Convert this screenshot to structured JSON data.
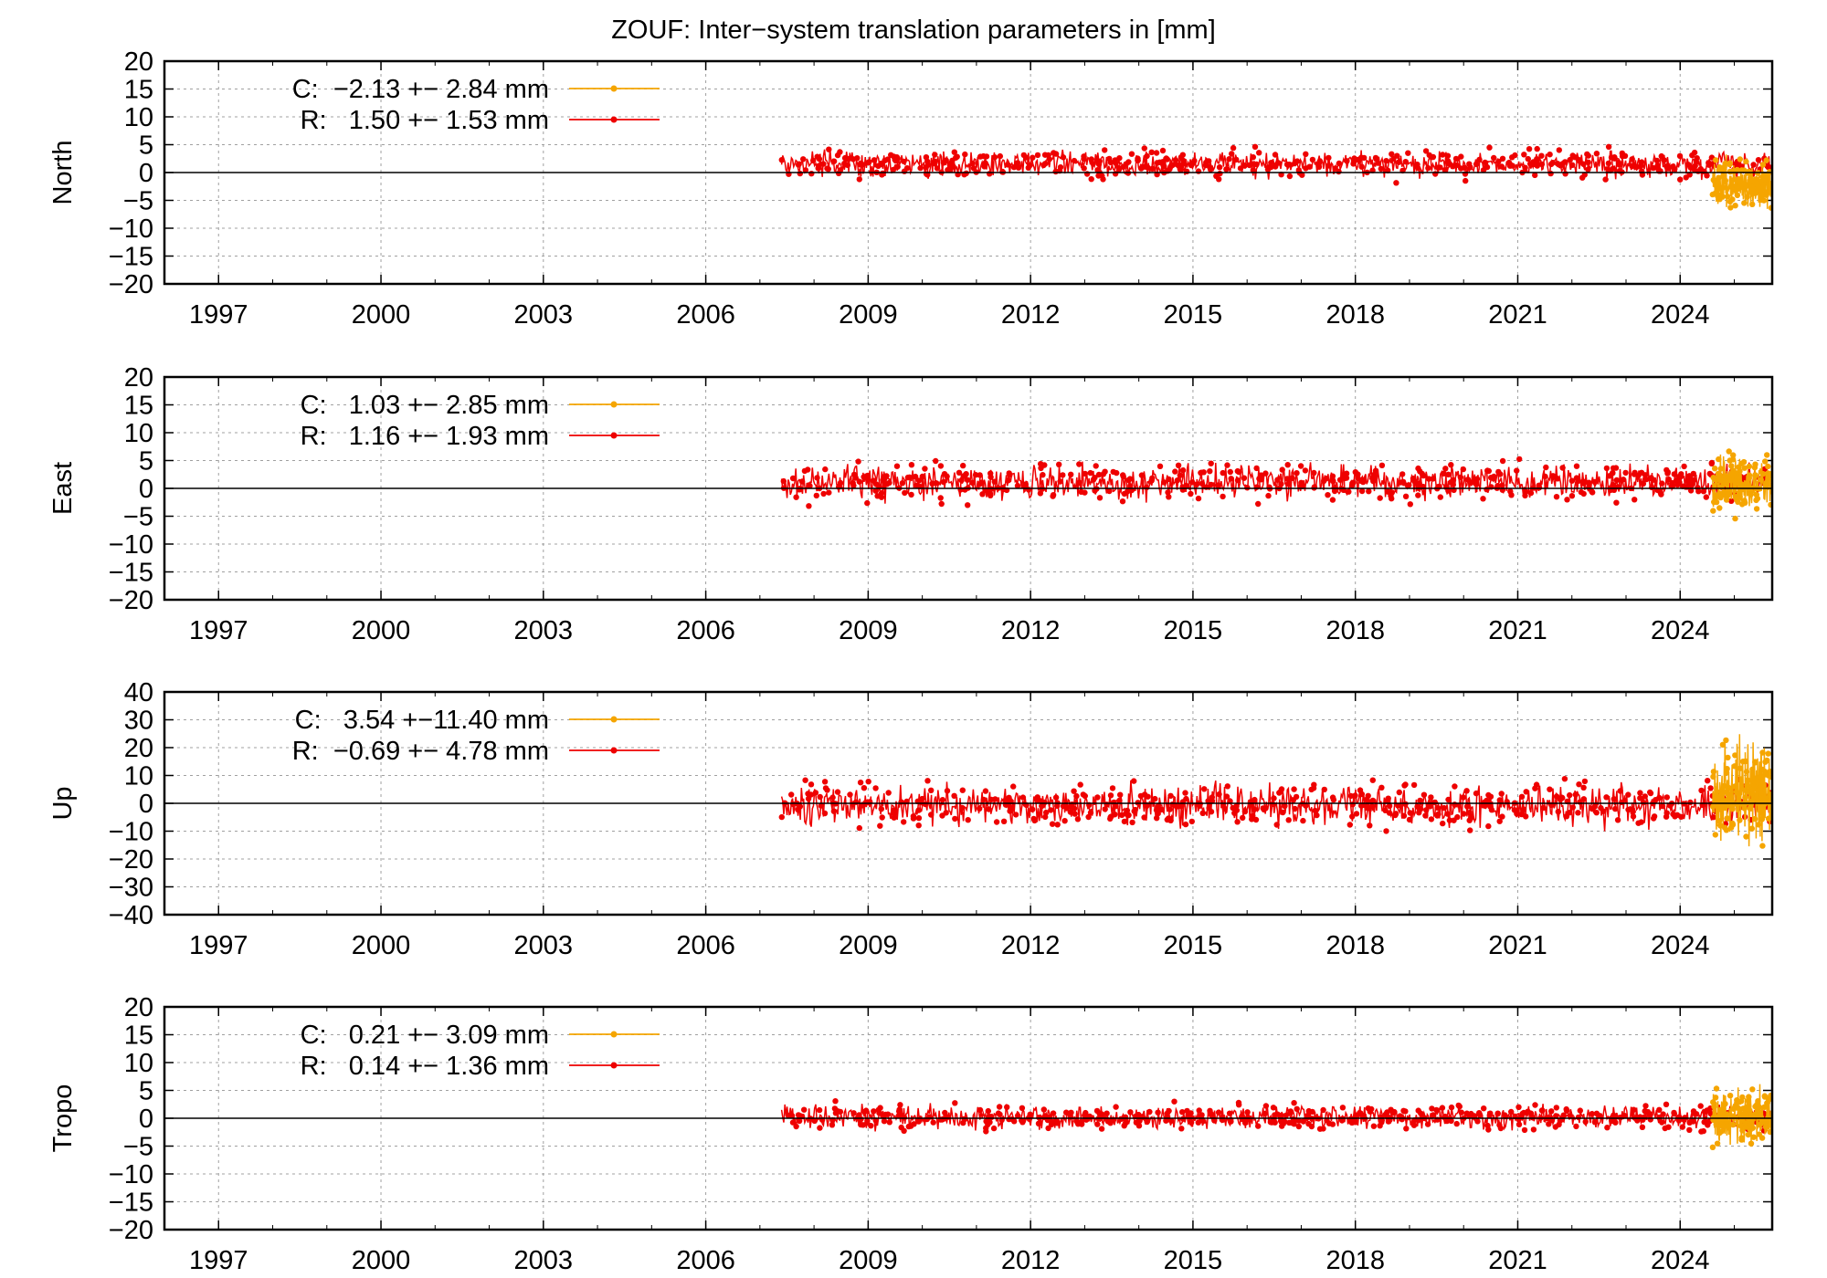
{
  "title": "ZOUF: Inter−system translation parameters in [mm]",
  "colors": {
    "C": "#f5a500",
    "R": "#ee0000",
    "zero_line": "#000000",
    "grid": "#a0a0a0"
  },
  "x_ticks": [
    "1997",
    "2000",
    "2003",
    "2006",
    "2009",
    "2012",
    "2015",
    "2018",
    "2021",
    "2024"
  ],
  "chart_data": [
    {
      "type": "line",
      "ylabel": "North",
      "xlim": [
        1996,
        2025.7
      ],
      "ylim": [
        -20,
        20
      ],
      "yticks": [
        "20",
        "15",
        "10",
        "5",
        "0",
        "−5",
        "−10",
        "−15",
        "−20"
      ],
      "grid": true,
      "legend_position": "top-left",
      "series": [
        {
          "name": "C",
          "legend": "C:  −2.13 +− 2.84 mm",
          "mean": -2.13,
          "std": 2.84,
          "x_range": [
            2024.6,
            2025.7
          ]
        },
        {
          "name": "R",
          "legend": "R:   1.50 +− 1.53 mm",
          "mean": 1.5,
          "std": 1.53,
          "x_range": [
            2007.4,
            2025.7
          ]
        }
      ]
    },
    {
      "type": "line",
      "ylabel": "East",
      "xlim": [
        1996,
        2025.7
      ],
      "ylim": [
        -20,
        20
      ],
      "yticks": [
        "20",
        "15",
        "10",
        "5",
        "0",
        "−5",
        "−10",
        "−15",
        "−20"
      ],
      "grid": true,
      "legend_position": "top-left",
      "series": [
        {
          "name": "C",
          "legend": "C:   1.03 +− 2.85 mm",
          "mean": 1.03,
          "std": 2.85,
          "x_range": [
            2024.6,
            2025.7
          ]
        },
        {
          "name": "R",
          "legend": "R:   1.16 +− 1.93 mm",
          "mean": 1.16,
          "std": 1.93,
          "x_range": [
            2007.4,
            2025.7
          ]
        }
      ]
    },
    {
      "type": "line",
      "ylabel": "Up",
      "xlim": [
        1996,
        2025.7
      ],
      "ylim": [
        -40,
        40
      ],
      "yticks": [
        "40",
        "30",
        "20",
        "10",
        "0",
        "−10",
        "−20",
        "−30",
        "−40"
      ],
      "grid": true,
      "legend_position": "top-left",
      "series": [
        {
          "name": "C",
          "legend": "C:   3.54 +−11.40 mm",
          "mean": 3.54,
          "std": 11.4,
          "x_range": [
            2024.6,
            2025.7
          ]
        },
        {
          "name": "R",
          "legend": "R:  −0.69 +− 4.78 mm",
          "mean": -0.69,
          "std": 4.78,
          "x_range": [
            2007.4,
            2025.7
          ]
        }
      ]
    },
    {
      "type": "line",
      "ylabel": "Tropo",
      "xlim": [
        1996,
        2025.7
      ],
      "ylim": [
        -20,
        20
      ],
      "yticks": [
        "20",
        "15",
        "10",
        "5",
        "0",
        "−5",
        "−10",
        "−15",
        "−20"
      ],
      "grid": true,
      "legend_position": "top-left",
      "series": [
        {
          "name": "C",
          "legend": "C:   0.21 +− 3.09 mm",
          "mean": 0.21,
          "std": 3.09,
          "x_range": [
            2024.6,
            2025.7
          ]
        },
        {
          "name": "R",
          "legend": "R:   0.14 +− 1.36 mm",
          "mean": 0.14,
          "std": 1.36,
          "x_range": [
            2007.4,
            2025.7
          ]
        }
      ]
    }
  ]
}
